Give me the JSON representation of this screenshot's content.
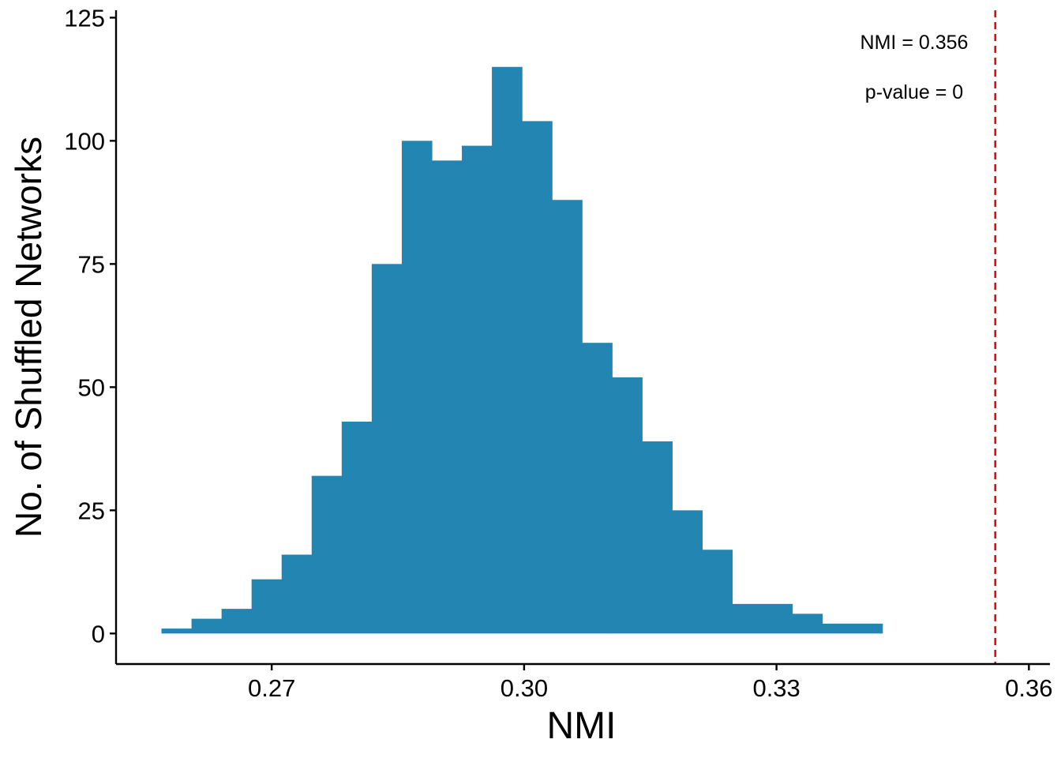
{
  "chart_data": {
    "type": "bar",
    "subtype": "histogram",
    "xlabel": "NMI",
    "ylabel": "No. of Shuffled Networks",
    "xlim": [
      0.2515,
      0.3625
    ],
    "ylim": [
      -6.2,
      126.5
    ],
    "x_ticks": [
      {
        "value": 0.27,
        "label": "0.27"
      },
      {
        "value": 0.3,
        "label": "0.30"
      },
      {
        "value": 0.33,
        "label": "0.33"
      },
      {
        "value": 0.36,
        "label": "0.36"
      }
    ],
    "y_ticks": [
      {
        "value": 0,
        "label": "0"
      },
      {
        "value": 25,
        "label": "25"
      },
      {
        "value": 50,
        "label": "50"
      },
      {
        "value": 75,
        "label": "75"
      },
      {
        "value": 100,
        "label": "100"
      },
      {
        "value": 125,
        "label": "125"
      }
    ],
    "bin_start": 0.2569,
    "bin_width": 0.00357,
    "counts": [
      1,
      3,
      5,
      11,
      16,
      32,
      43,
      75,
      100,
      96,
      99,
      115,
      104,
      88,
      59,
      52,
      39,
      25,
      17,
      6,
      6,
      4,
      2,
      2
    ],
    "bar_color": "#2285B2",
    "reference_line": {
      "x": 0.356,
      "color": "#FF0000",
      "style": "dashed"
    },
    "annotations": [
      {
        "text": "NMI = 0.356"
      },
      {
        "text": "p-value = 0"
      }
    ],
    "grid": false,
    "legend": "none"
  }
}
